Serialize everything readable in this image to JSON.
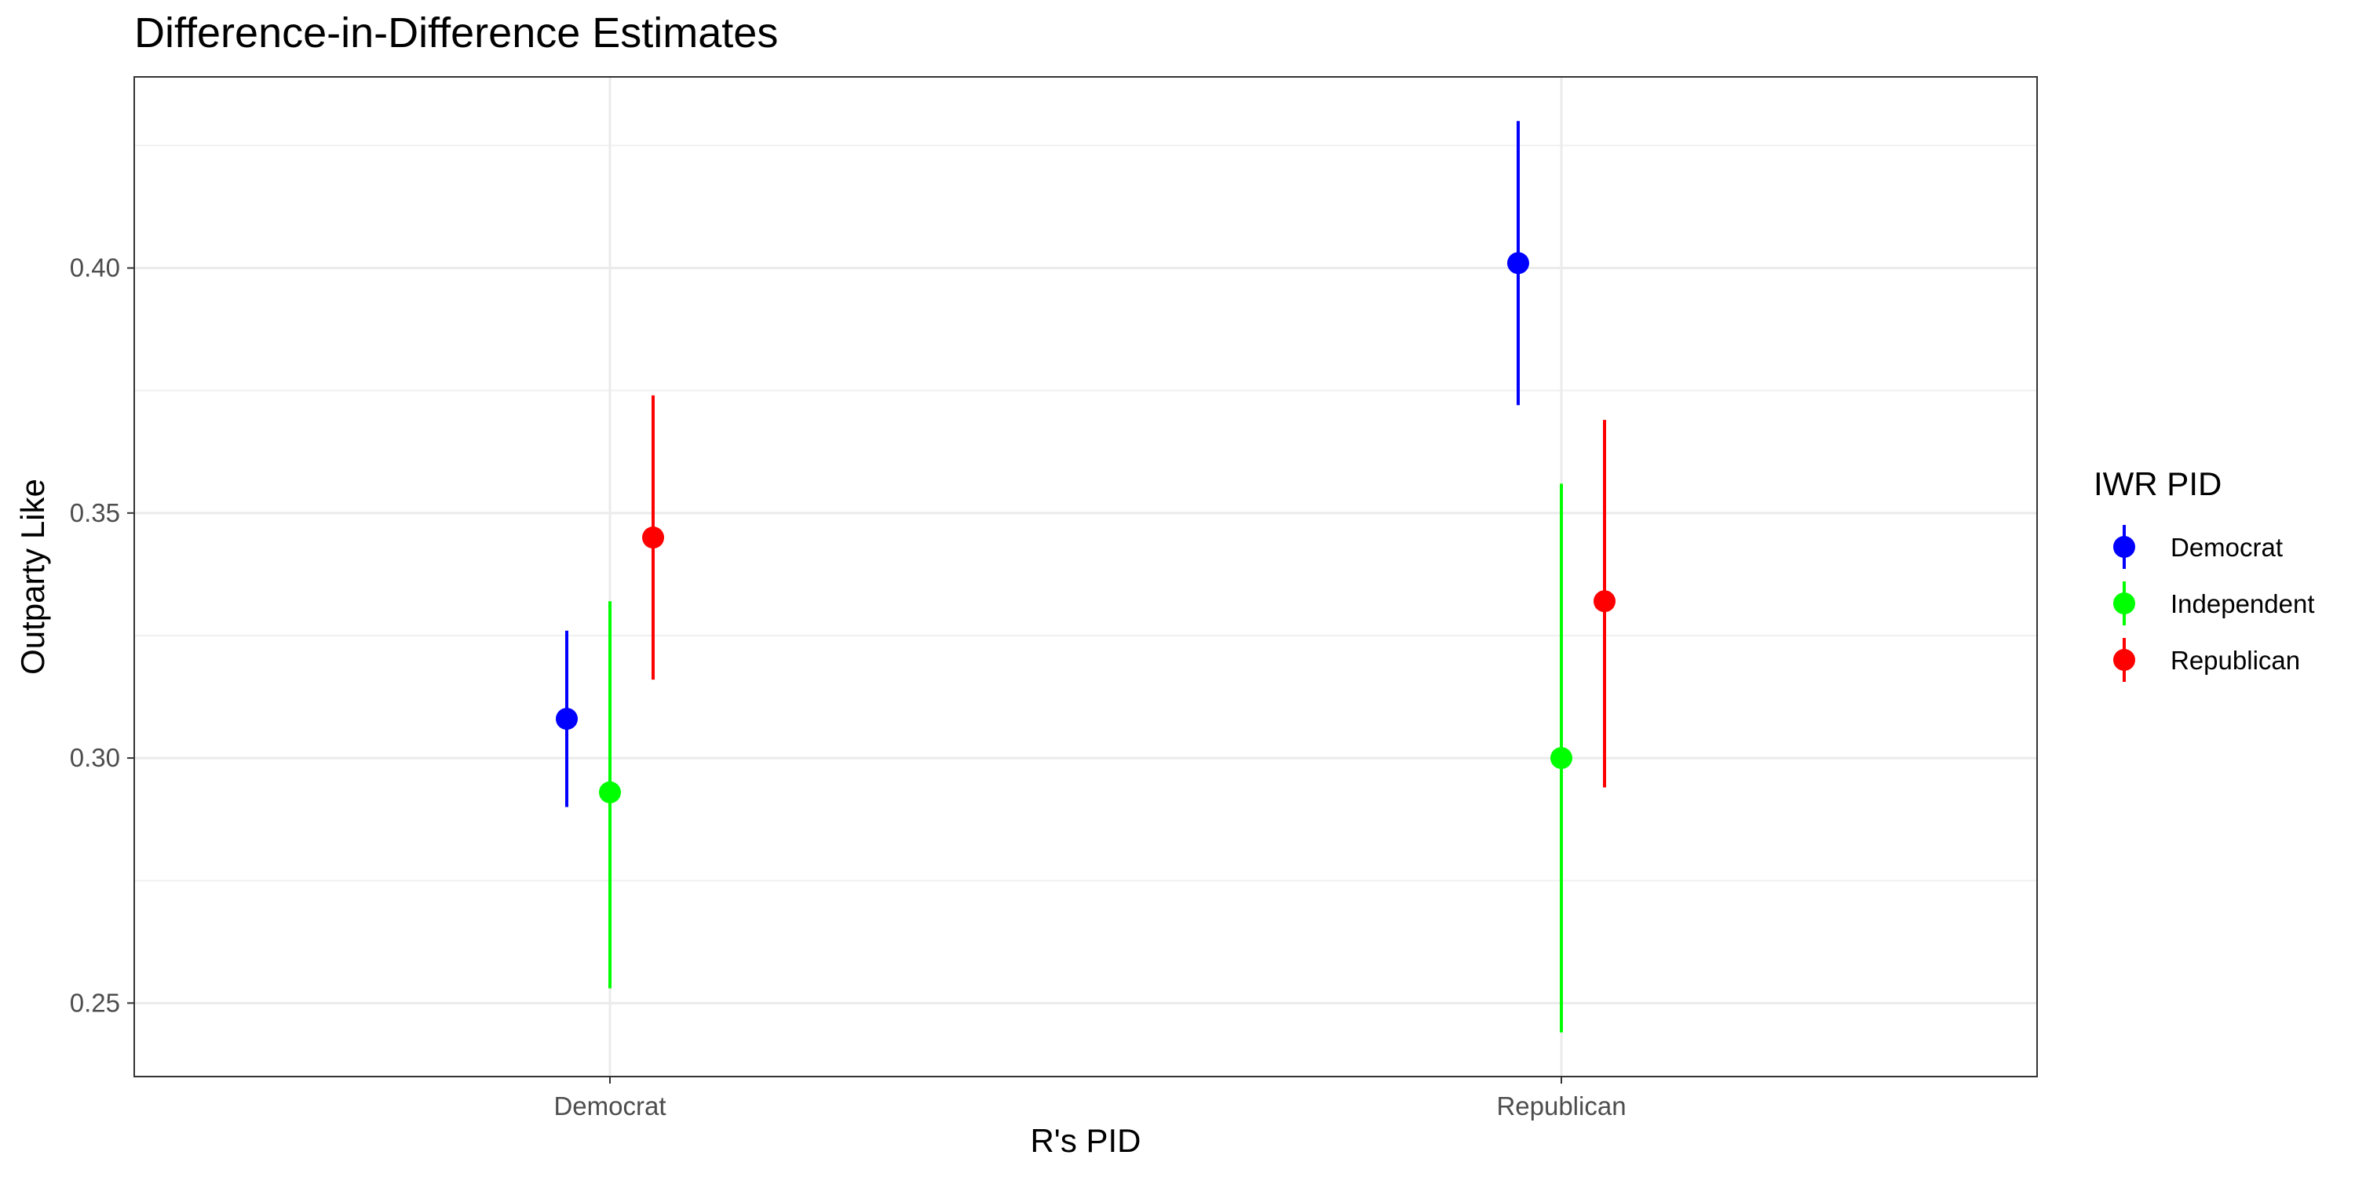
{
  "chart_data": {
    "type": "scatter",
    "title": "Difference-in-Difference Estimates",
    "xlabel": "R's PID",
    "ylabel": "Outparty Like",
    "categories": [
      "Democrat",
      "Republican"
    ],
    "ylim": [
      0.235,
      0.439
    ],
    "yticks": [
      0.25,
      0.3,
      0.35,
      0.4
    ],
    "ytick_labels": [
      "0.25",
      "0.30",
      "0.35",
      "0.40"
    ],
    "grid": true,
    "legend": {
      "title": "IWR PID",
      "placement": "right"
    },
    "series": [
      {
        "name": "Democrat",
        "color": "#0000ff",
        "values": [
          0.308,
          0.401
        ],
        "lower": [
          0.29,
          0.372
        ],
        "upper": [
          0.326,
          0.43
        ]
      },
      {
        "name": "Independent",
        "color": "#00ff00",
        "values": [
          0.293,
          0.3
        ],
        "lower": [
          0.253,
          0.244
        ],
        "upper": [
          0.332,
          0.356
        ]
      },
      {
        "name": "Republican",
        "color": "#ff0000",
        "values": [
          0.345,
          0.332
        ],
        "lower": [
          0.316,
          0.294
        ],
        "upper": [
          0.374,
          0.369
        ]
      }
    ]
  }
}
